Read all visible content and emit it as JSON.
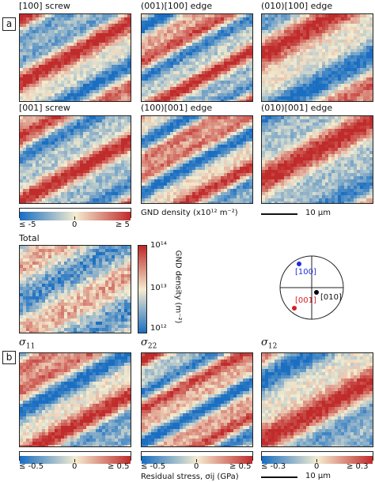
{
  "panels": {
    "a": "a",
    "b": "b"
  },
  "maps_a": [
    {
      "title": "[100] screw",
      "seed": 1,
      "palette": "div"
    },
    {
      "title": "(001)[100] edge",
      "seed": 2,
      "palette": "div"
    },
    {
      "title": "(010)[100] edge",
      "seed": 3,
      "palette": "div"
    },
    {
      "title": "[001] screw",
      "seed": 4,
      "palette": "div"
    },
    {
      "title": "(100)[001] edge",
      "seed": 5,
      "palette": "div"
    },
    {
      "title": "(010)[001] edge",
      "seed": 6,
      "palette": "div"
    }
  ],
  "gnd_colorbar": {
    "min_label": "≤ -5",
    "mid_label": "0",
    "max_label": "≥ 5",
    "title": "GND density (x10¹² m⁻²)"
  },
  "scale_bar_label": "10 µm",
  "total": {
    "title": "Total",
    "cb_title": "GND density (m⁻²)",
    "ticks": [
      "10¹⁴",
      "10¹³",
      "10¹²"
    ]
  },
  "pole_figure": {
    "labels": {
      "p100": "[100]",
      "p001": "[001]",
      "p010": "[010]"
    },
    "colors": {
      "p100": "#1f2fd6",
      "p001": "#d81e1e",
      "p010": "#000000"
    }
  },
  "maps_b": [
    {
      "sym": "σ",
      "sub": "11",
      "seed": 7
    },
    {
      "sym": "σ",
      "sub": "22",
      "seed": 8
    },
    {
      "sym": "σ",
      "sub": "12",
      "seed": 9
    }
  ],
  "stress_colorbars": [
    {
      "min_label": "≤ -0.5",
      "mid_label": "0",
      "max_label": "≥ 0.5"
    },
    {
      "min_label": "≤ -0.5",
      "mid_label": "0",
      "max_label": "≥ 0.5"
    },
    {
      "min_label": "≤ -0.3",
      "mid_label": "0",
      "max_label": "≥ 0.3"
    }
  ],
  "stress_axis_label": "Residual stress, σij (GPa)",
  "colors": {
    "neg": "#1b6fc2",
    "neutral": "#f4ecd0",
    "pos": "#c02b2b"
  }
}
